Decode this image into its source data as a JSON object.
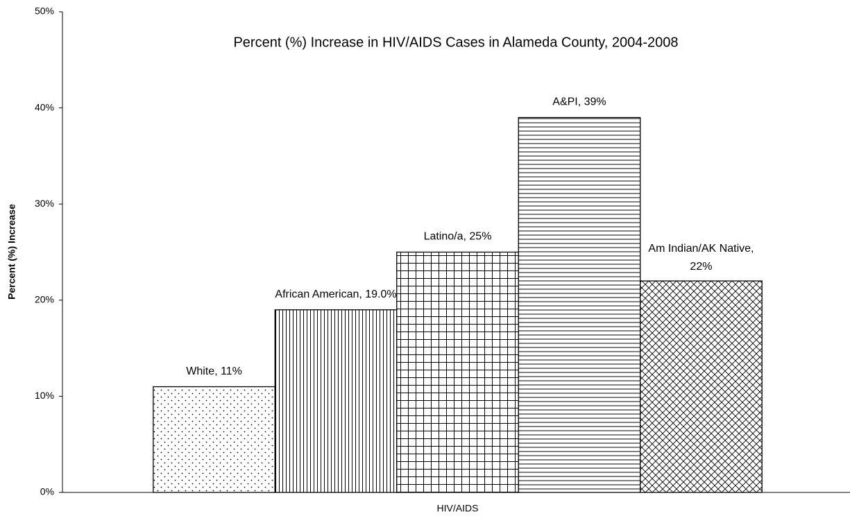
{
  "chart_data": {
    "type": "bar",
    "title": "Percent (%) Increase in HIV/AIDS Cases in Alameda County, 2004-2008",
    "ylabel": "Percent (%) Increase",
    "categories": [
      "HIV/AIDS"
    ],
    "series": [
      {
        "values": [
          11
        ],
        "value_labels": [
          "White, 11%"
        ],
        "pattern": "dots",
        "color": "#000000"
      },
      {
        "values": [
          19.0
        ],
        "value_labels": [
          "African American, 19.0%"
        ],
        "pattern": "vertical",
        "color": "#000000"
      },
      {
        "values": [
          25
        ],
        "value_labels": [
          "Latino/a, 25%"
        ],
        "pattern": "grid",
        "color": "#000000"
      },
      {
        "values": [
          39
        ],
        "value_labels": [
          "A&PI, 39%"
        ],
        "pattern": "horizontal",
        "color": "#000000"
      },
      {
        "values": [
          22
        ],
        "value_labels": [
          "Am Indian/AK Native, 22%"
        ],
        "pattern": "crosshatch",
        "color": "#000000"
      }
    ],
    "ylim": [
      0,
      50
    ],
    "yticks": [
      {
        "value": 0,
        "label": "0%"
      },
      {
        "value": 10,
        "label": "10%"
      },
      {
        "value": 20,
        "label": "20%"
      },
      {
        "value": 30,
        "label": "30%"
      },
      {
        "value": 40,
        "label": "40%"
      },
      {
        "value": 50,
        "label": "50%"
      }
    ],
    "grid": false
  }
}
